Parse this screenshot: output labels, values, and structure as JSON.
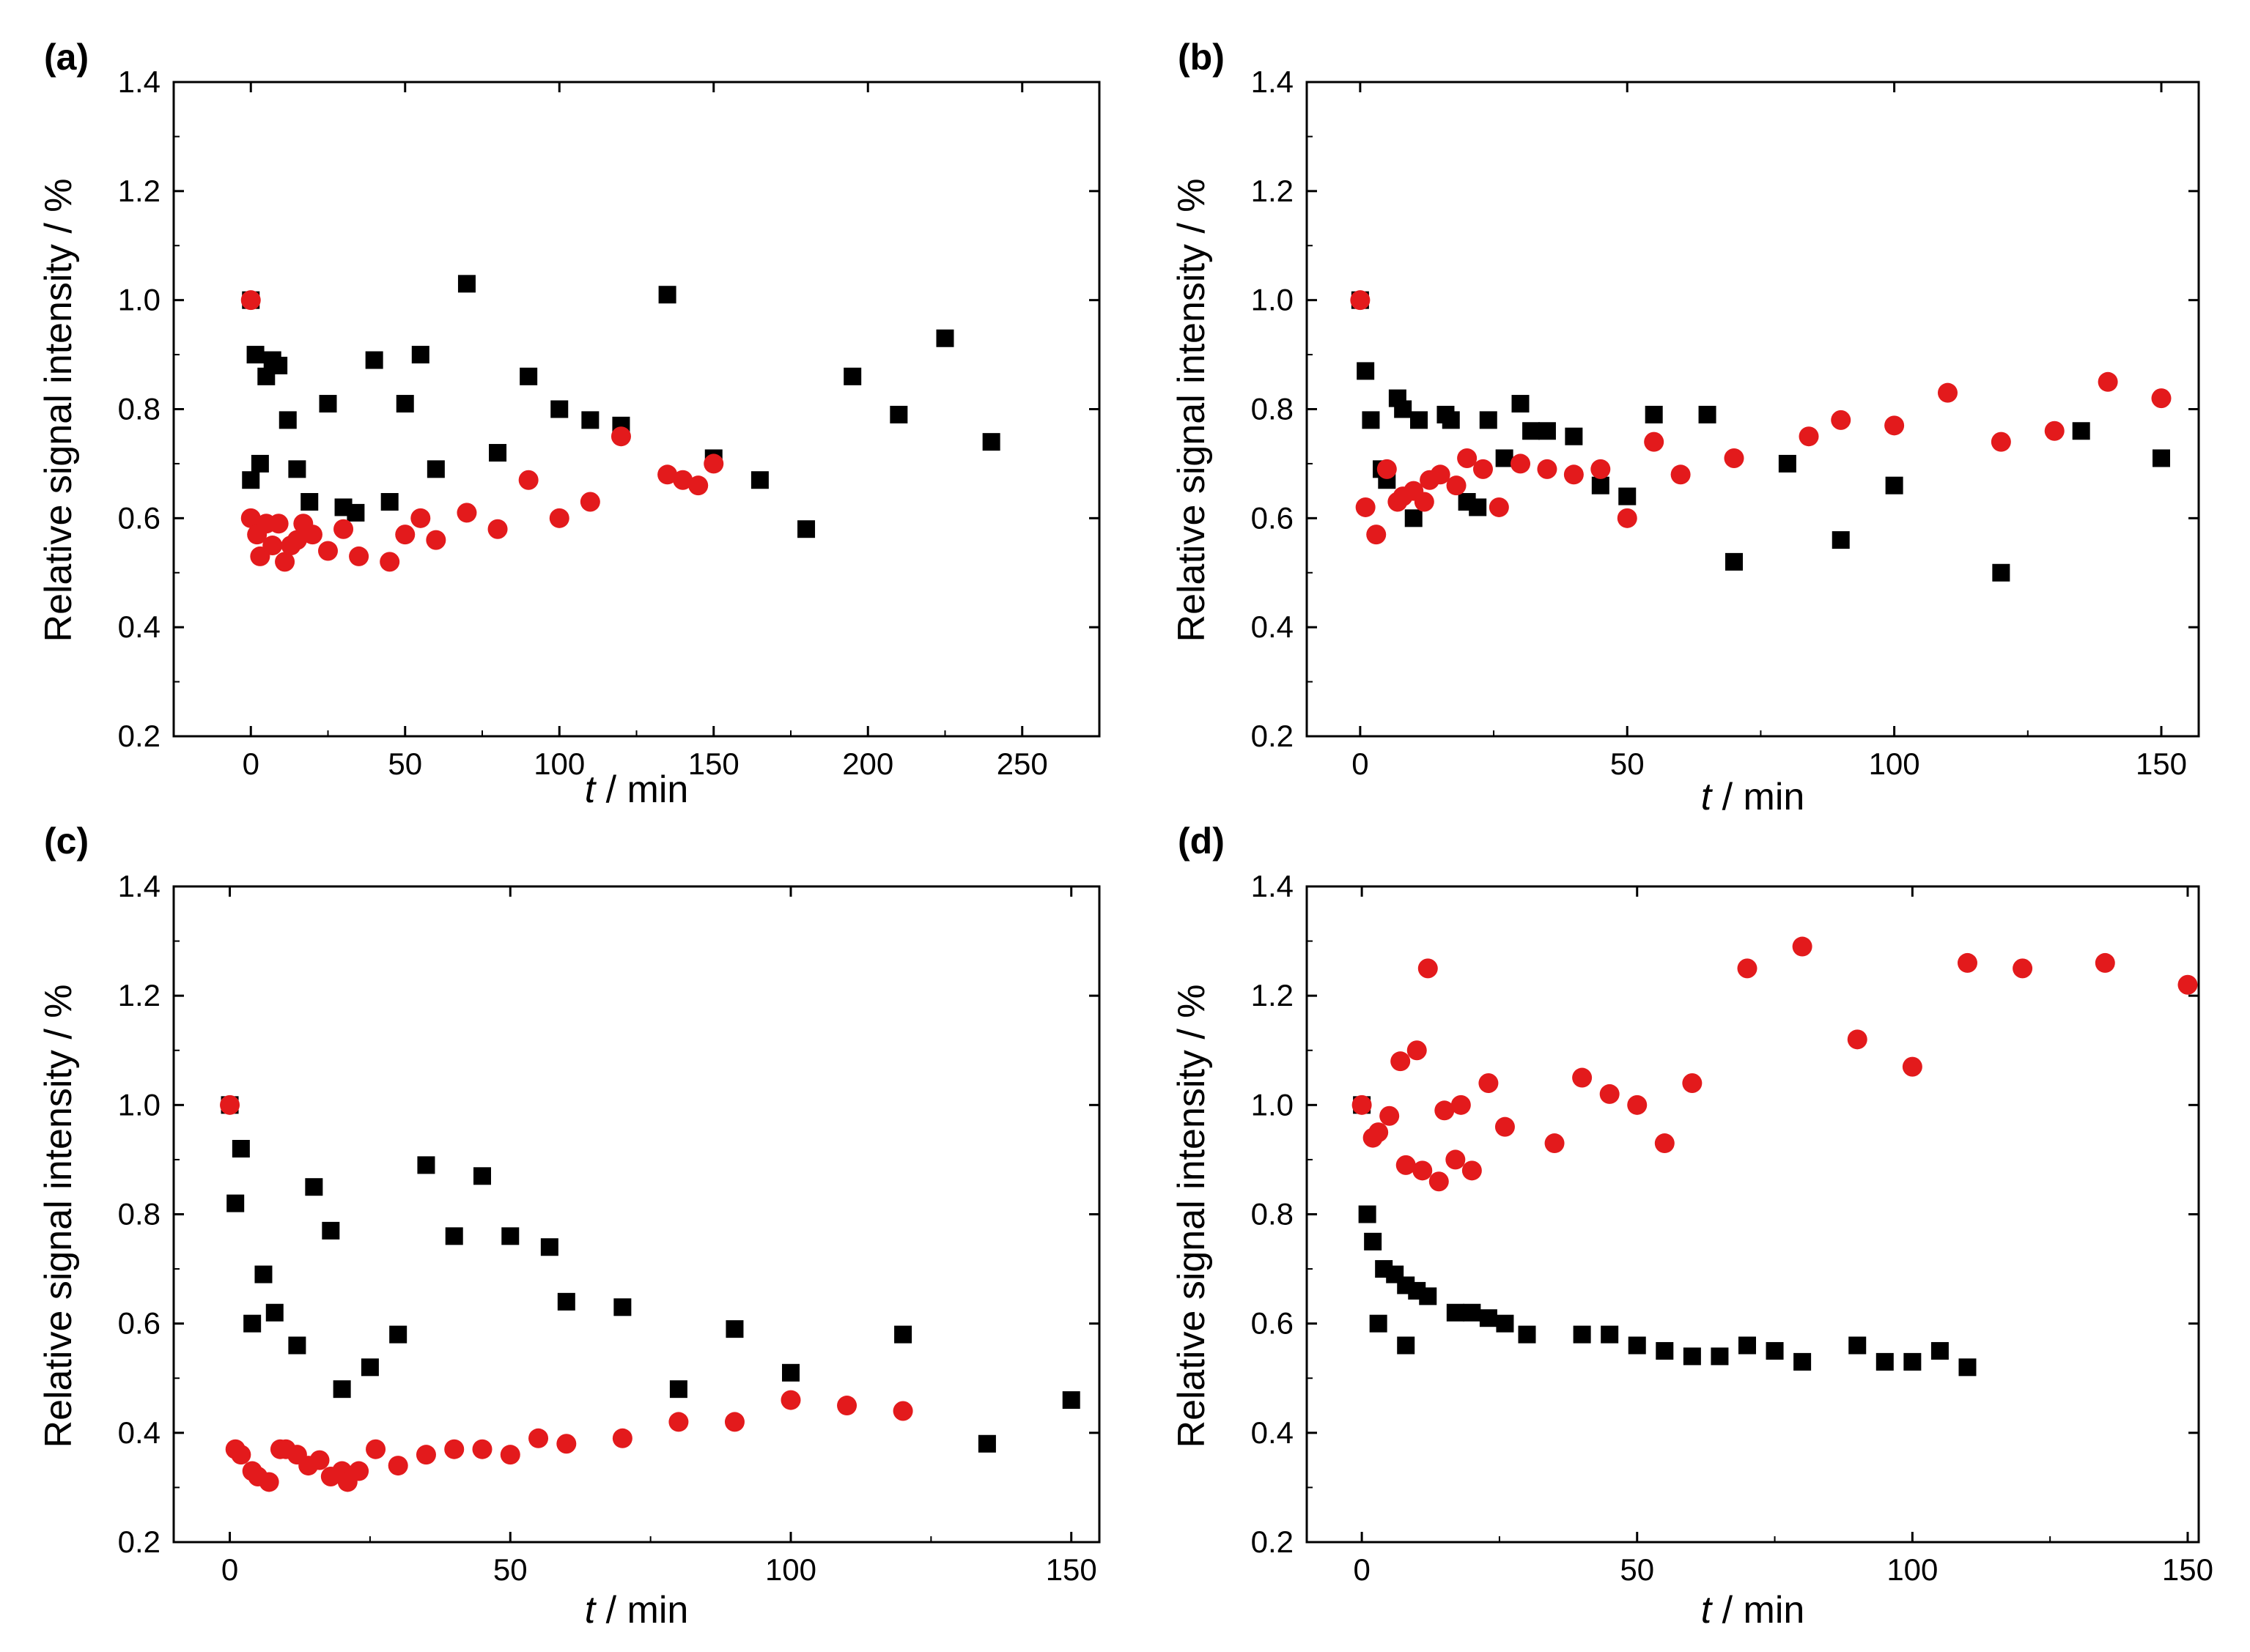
{
  "chart_data": [
    {
      "panel": "(a)",
      "type": "scatter",
      "xlabel_var": "t",
      "xlabel_unit": " / min",
      "ylabel": "Relative signal intensity / %",
      "xlim": [
        -25,
        275
      ],
      "ylim": [
        0.2,
        1.4
      ],
      "xticks": [
        0,
        50,
        100,
        150,
        200,
        250
      ],
      "yticks": [
        0.2,
        0.4,
        0.6,
        0.8,
        1.0,
        1.2,
        1.4
      ],
      "grid": false,
      "legend": "none",
      "series": [
        {
          "marker": "square",
          "color": "#000000",
          "points": [
            [
              0,
              1.0
            ],
            [
              0,
              0.67
            ],
            [
              1.5,
              0.9
            ],
            [
              3,
              0.7
            ],
            [
              5,
              0.86
            ],
            [
              7,
              0.89
            ],
            [
              9,
              0.88
            ],
            [
              12,
              0.78
            ],
            [
              15,
              0.69
            ],
            [
              19,
              0.63
            ],
            [
              25,
              0.81
            ],
            [
              30,
              0.62
            ],
            [
              34,
              0.61
            ],
            [
              40,
              0.89
            ],
            [
              45,
              0.63
            ],
            [
              50,
              0.81
            ],
            [
              55,
              0.9
            ],
            [
              60,
              0.69
            ],
            [
              70,
              1.03
            ],
            [
              80,
              0.72
            ],
            [
              90,
              0.86
            ],
            [
              100,
              0.8
            ],
            [
              110,
              0.78
            ],
            [
              120,
              0.77
            ],
            [
              135,
              1.01
            ],
            [
              150,
              0.71
            ],
            [
              165,
              0.67
            ],
            [
              180,
              0.58
            ],
            [
              195,
              0.86
            ],
            [
              210,
              0.79
            ],
            [
              225,
              0.93
            ],
            [
              240,
              0.74
            ]
          ]
        },
        {
          "marker": "circle",
          "color": "#e31a1c",
          "points": [
            [
              0,
              1.0
            ],
            [
              0,
              0.6
            ],
            [
              2,
              0.57
            ],
            [
              3,
              0.53
            ],
            [
              5,
              0.59
            ],
            [
              7,
              0.55
            ],
            [
              9,
              0.59
            ],
            [
              11,
              0.52
            ],
            [
              13,
              0.55
            ],
            [
              15,
              0.56
            ],
            [
              17,
              0.59
            ],
            [
              20,
              0.57
            ],
            [
              25,
              0.54
            ],
            [
              30,
              0.58
            ],
            [
              35,
              0.53
            ],
            [
              45,
              0.52
            ],
            [
              50,
              0.57
            ],
            [
              55,
              0.6
            ],
            [
              60,
              0.56
            ],
            [
              70,
              0.61
            ],
            [
              80,
              0.58
            ],
            [
              90,
              0.67
            ],
            [
              100,
              0.6
            ],
            [
              110,
              0.63
            ],
            [
              120,
              0.75
            ],
            [
              135,
              0.68
            ],
            [
              140,
              0.67
            ],
            [
              145,
              0.66
            ],
            [
              150,
              0.7
            ]
          ]
        }
      ]
    },
    {
      "panel": "(b)",
      "type": "scatter",
      "xlabel_var": "t",
      "xlabel_unit": " / min",
      "ylabel": "Relative signal intensity / %",
      "xlim": [
        -10,
        157
      ],
      "ylim": [
        0.2,
        1.4
      ],
      "xticks": [
        0,
        50,
        100,
        150
      ],
      "yticks": [
        0.2,
        0.4,
        0.6,
        0.8,
        1.0,
        1.2,
        1.4
      ],
      "grid": false,
      "legend": "none",
      "series": [
        {
          "marker": "square",
          "color": "#000000",
          "points": [
            [
              0,
              1.0
            ],
            [
              1,
              0.87
            ],
            [
              2,
              0.78
            ],
            [
              4,
              0.69
            ],
            [
              5,
              0.67
            ],
            [
              7,
              0.82
            ],
            [
              8,
              0.8
            ],
            [
              10,
              0.6
            ],
            [
              11,
              0.78
            ],
            [
              16,
              0.79
            ],
            [
              17,
              0.78
            ],
            [
              20,
              0.63
            ],
            [
              22,
              0.62
            ],
            [
              24,
              0.78
            ],
            [
              27,
              0.71
            ],
            [
              30,
              0.81
            ],
            [
              32,
              0.76
            ],
            [
              35,
              0.76
            ],
            [
              40,
              0.75
            ],
            [
              45,
              0.66
            ],
            [
              50,
              0.64
            ],
            [
              55,
              0.79
            ],
            [
              65,
              0.79
            ],
            [
              70,
              0.52
            ],
            [
              80,
              0.7
            ],
            [
              90,
              0.56
            ],
            [
              100,
              0.66
            ],
            [
              120,
              0.5
            ],
            [
              135,
              0.76
            ],
            [
              150,
              0.71
            ]
          ]
        },
        {
          "marker": "circle",
          "color": "#e31a1c",
          "points": [
            [
              0,
              1.0
            ],
            [
              1,
              0.62
            ],
            [
              3,
              0.57
            ],
            [
              5,
              0.69
            ],
            [
              7,
              0.63
            ],
            [
              8,
              0.64
            ],
            [
              10,
              0.65
            ],
            [
              12,
              0.63
            ],
            [
              13,
              0.67
            ],
            [
              15,
              0.68
            ],
            [
              18,
              0.66
            ],
            [
              20,
              0.71
            ],
            [
              23,
              0.69
            ],
            [
              26,
              0.62
            ],
            [
              30,
              0.7
            ],
            [
              35,
              0.69
            ],
            [
              40,
              0.68
            ],
            [
              45,
              0.69
            ],
            [
              50,
              0.6
            ],
            [
              55,
              0.74
            ],
            [
              60,
              0.68
            ],
            [
              70,
              0.71
            ],
            [
              84,
              0.75
            ],
            [
              90,
              0.78
            ],
            [
              100,
              0.77
            ],
            [
              110,
              0.83
            ],
            [
              120,
              0.74
            ],
            [
              130,
              0.76
            ],
            [
              140,
              0.85
            ],
            [
              150,
              0.82
            ]
          ]
        }
      ]
    },
    {
      "panel": "(c)",
      "type": "scatter",
      "xlabel_var": "t",
      "xlabel_unit": " / min",
      "ylabel": "Relative signal intensity / %",
      "xlim": [
        -10,
        155
      ],
      "ylim": [
        0.2,
        1.4
      ],
      "xticks": [
        0,
        50,
        100,
        150
      ],
      "yticks": [
        0.2,
        0.4,
        0.6,
        0.8,
        1.0,
        1.2,
        1.4
      ],
      "grid": false,
      "legend": "none",
      "series": [
        {
          "marker": "square",
          "color": "#000000",
          "points": [
            [
              0,
              1.0
            ],
            [
              1,
              0.82
            ],
            [
              2,
              0.92
            ],
            [
              4,
              0.6
            ],
            [
              6,
              0.69
            ],
            [
              8,
              0.62
            ],
            [
              12,
              0.56
            ],
            [
              15,
              0.85
            ],
            [
              18,
              0.77
            ],
            [
              20,
              0.48
            ],
            [
              25,
              0.52
            ],
            [
              30,
              0.58
            ],
            [
              35,
              0.89
            ],
            [
              40,
              0.76
            ],
            [
              45,
              0.87
            ],
            [
              50,
              0.76
            ],
            [
              57,
              0.74
            ],
            [
              60,
              0.64
            ],
            [
              70,
              0.63
            ],
            [
              80,
              0.48
            ],
            [
              90,
              0.59
            ],
            [
              100,
              0.51
            ],
            [
              120,
              0.58
            ],
            [
              135,
              0.38
            ],
            [
              150,
              0.46
            ]
          ]
        },
        {
          "marker": "circle",
          "color": "#e31a1c",
          "points": [
            [
              0,
              1.0
            ],
            [
              1,
              0.37
            ],
            [
              2,
              0.36
            ],
            [
              4,
              0.33
            ],
            [
              5,
              0.32
            ],
            [
              7,
              0.31
            ],
            [
              9,
              0.37
            ],
            [
              10,
              0.37
            ],
            [
              12,
              0.36
            ],
            [
              14,
              0.34
            ],
            [
              16,
              0.35
            ],
            [
              18,
              0.32
            ],
            [
              20,
              0.33
            ],
            [
              21,
              0.31
            ],
            [
              23,
              0.33
            ],
            [
              26,
              0.37
            ],
            [
              30,
              0.34
            ],
            [
              35,
              0.36
            ],
            [
              40,
              0.37
            ],
            [
              45,
              0.37
            ],
            [
              50,
              0.36
            ],
            [
              55,
              0.39
            ],
            [
              60,
              0.38
            ],
            [
              70,
              0.39
            ],
            [
              80,
              0.42
            ],
            [
              90,
              0.42
            ],
            [
              100,
              0.46
            ],
            [
              110,
              0.45
            ],
            [
              120,
              0.44
            ]
          ]
        }
      ]
    },
    {
      "panel": "(d)",
      "type": "scatter",
      "xlabel_var": "t",
      "xlabel_unit": " / min",
      "ylabel": "Relative signal intensity / %",
      "xlim": [
        -10,
        152
      ],
      "ylim": [
        0.2,
        1.4
      ],
      "xticks": [
        0,
        50,
        100,
        150
      ],
      "yticks": [
        0.2,
        0.4,
        0.6,
        0.8,
        1.0,
        1.2,
        1.4
      ],
      "grid": false,
      "legend": "none",
      "series": [
        {
          "marker": "square",
          "color": "#000000",
          "points": [
            [
              0,
              1.0
            ],
            [
              1,
              0.8
            ],
            [
              2,
              0.75
            ],
            [
              3,
              0.6
            ],
            [
              4,
              0.7
            ],
            [
              6,
              0.69
            ],
            [
              8,
              0.56
            ],
            [
              8,
              0.67
            ],
            [
              10,
              0.66
            ],
            [
              12,
              0.65
            ],
            [
              17,
              0.62
            ],
            [
              20,
              0.62
            ],
            [
              23,
              0.61
            ],
            [
              26,
              0.6
            ],
            [
              30,
              0.58
            ],
            [
              40,
              0.58
            ],
            [
              45,
              0.58
            ],
            [
              50,
              0.56
            ],
            [
              55,
              0.55
            ],
            [
              60,
              0.54
            ],
            [
              65,
              0.54
            ],
            [
              70,
              0.56
            ],
            [
              75,
              0.55
            ],
            [
              80,
              0.53
            ],
            [
              90,
              0.56
            ],
            [
              95,
              0.53
            ],
            [
              100,
              0.53
            ],
            [
              105,
              0.55
            ],
            [
              110,
              0.52
            ]
          ]
        },
        {
          "marker": "circle",
          "color": "#e31a1c",
          "points": [
            [
              0,
              1.0
            ],
            [
              2,
              0.94
            ],
            [
              3,
              0.95
            ],
            [
              5,
              0.98
            ],
            [
              7,
              1.08
            ],
            [
              8,
              0.89
            ],
            [
              10,
              1.1
            ],
            [
              11,
              0.88
            ],
            [
              12,
              1.25
            ],
            [
              14,
              0.86
            ],
            [
              15,
              0.99
            ],
            [
              17,
              0.9
            ],
            [
              18,
              1.0
            ],
            [
              20,
              0.88
            ],
            [
              23,
              1.04
            ],
            [
              26,
              0.96
            ],
            [
              35,
              0.93
            ],
            [
              40,
              1.05
            ],
            [
              45,
              1.02
            ],
            [
              50,
              1.0
            ],
            [
              55,
              0.93
            ],
            [
              60,
              1.04
            ],
            [
              70,
              1.25
            ],
            [
              80,
              1.29
            ],
            [
              90,
              1.12
            ],
            [
              100,
              1.07
            ],
            [
              110,
              1.26
            ],
            [
              120,
              1.25
            ],
            [
              135,
              1.26
            ],
            [
              150,
              1.22
            ]
          ]
        }
      ]
    }
  ]
}
